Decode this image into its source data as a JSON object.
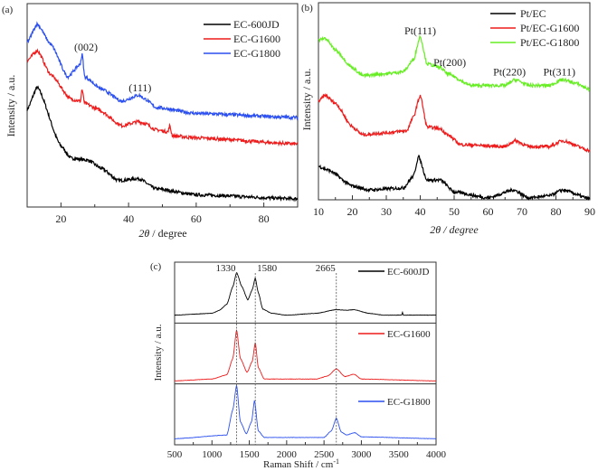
{
  "chart_data": [
    {
      "panel_label": "(a)",
      "type": "line",
      "xlabel_italic": "2θ",
      "xlabel_rest": " / degree",
      "ylabel": "Intensity / a.u.",
      "xlim": [
        10,
        90
      ],
      "ylim": [
        0,
        100
      ],
      "xticks": [
        20,
        40,
        60,
        80
      ],
      "grid": false,
      "legend": "top-right",
      "annotations": [
        {
          "text": "(002)",
          "x": 27.4,
          "y": 77
        },
        {
          "text": "(111)",
          "x": 43.4,
          "y": 57
        }
      ],
      "series": [
        {
          "name": "EC-600JD",
          "color": "#000000",
          "x": [
            10,
            13,
            20,
            23,
            28,
            32,
            37,
            43,
            48,
            60,
            90
          ],
          "y": [
            48,
            59,
            30,
            24,
            23,
            19,
            13,
            14,
            9,
            6,
            4
          ]
        },
        {
          "name": "EC-G1600",
          "color": "#ee1c1c",
          "x": [
            10,
            13,
            17,
            23,
            25.8,
            26.2,
            27,
            31,
            38,
            43,
            45,
            48,
            51.7,
            52.1,
            53,
            60,
            90
          ],
          "y": [
            72,
            77,
            65,
            53,
            52,
            58,
            51,
            48,
            40,
            42,
            41,
            38,
            37,
            40,
            35,
            34,
            31
          ]
        },
        {
          "name": "EC-G1800",
          "color": "#2b4ff0",
          "x": [
            10,
            13,
            17,
            22,
            25.6,
            26.3,
            27,
            32,
            38,
            43,
            45,
            48,
            60,
            90
          ],
          "y": [
            81,
            90,
            80,
            64,
            70,
            75,
            64,
            58,
            52,
            55,
            53,
            49,
            46,
            44
          ]
        }
      ]
    },
    {
      "panel_label": "(b)",
      "type": "line",
      "xlabel": "2θ / degree",
      "ylabel": "Intensity / a.u.",
      "xlim": [
        10,
        90
      ],
      "ylim": [
        0,
        100
      ],
      "xticks": [
        10,
        20,
        30,
        40,
        50,
        60,
        70,
        80,
        90
      ],
      "grid": false,
      "legend": "top-right",
      "annotations": [
        {
          "text": "Pt(111)",
          "x": 40,
          "y": 84
        },
        {
          "text": "Pt(200)",
          "x": 48.7,
          "y": 68
        },
        {
          "text": "Pt(220)",
          "x": 66.3,
          "y": 63
        },
        {
          "text": "Pt(311)",
          "x": 81,
          "y": 63
        }
      ],
      "series": [
        {
          "name": "Pt/EC",
          "color": "#000000",
          "x": [
            10,
            13,
            20,
            25,
            35,
            38,
            39.5,
            42,
            46,
            50,
            60,
            67.5,
            72,
            78,
            82,
            90
          ],
          "y": [
            17,
            15,
            7,
            5,
            6,
            12,
            22,
            10,
            10,
            4,
            1,
            5,
            1,
            2,
            5,
            0.5
          ]
        },
        {
          "name": "Pt/EC-G1600",
          "color": "#ee1c1c",
          "x": [
            10,
            12,
            15,
            20,
            23,
            30,
            36,
            38,
            40,
            42,
            46,
            48,
            52,
            65,
            68,
            72,
            78,
            82,
            90
          ],
          "y": [
            50,
            53,
            49,
            37,
            33,
            34,
            35,
            42,
            53,
            37,
            36,
            33,
            28,
            27,
            30,
            27,
            27,
            30,
            25
          ]
        },
        {
          "name": "Pt/EC-G1800",
          "color": "#66ee22",
          "x": [
            10,
            12,
            15,
            20,
            23,
            30,
            35,
            38,
            40,
            42,
            46,
            48,
            55,
            65,
            68,
            72,
            78,
            82,
            86,
            90
          ],
          "y": [
            81,
            82,
            76,
            67,
            63,
            64,
            65,
            71,
            83,
            69,
            67,
            64,
            58,
            58,
            61,
            58,
            58,
            61,
            59,
            56
          ]
        }
      ]
    },
    {
      "panel_label": "(c)",
      "type": "line",
      "xlabel": "Raman Shift / cm",
      "xlabel_sup": "-1",
      "ylabel": "Intensity / a.u.",
      "xlim": [
        500,
        4000
      ],
      "ylim": [
        0,
        100
      ],
      "xticks": [
        500,
        1000,
        1500,
        2000,
        2500,
        3000,
        3500,
        4000
      ],
      "grid": false,
      "stacked_subpanels": true,
      "reference_lines": [
        {
          "text": "1330",
          "x": 1330
        },
        {
          "text": "1580",
          "x": 1580
        },
        {
          "text": "2665",
          "x": 2665
        }
      ],
      "series": [
        {
          "name": "EC-600JD",
          "color": "#000000",
          "x": [
            500,
            1000,
            1100,
            1200,
            1280,
            1330,
            1400,
            1480,
            1540,
            1580,
            1620,
            1680,
            1800,
            2000,
            2400,
            2665,
            2800,
            2900,
            3100,
            3300,
            3540,
            3550,
            3560,
            4000
          ],
          "y": [
            13,
            16,
            21,
            31,
            60,
            83,
            60,
            38,
            55,
            74,
            50,
            23,
            16,
            13,
            16,
            22,
            21,
            22,
            16,
            13,
            13,
            18,
            13,
            13
          ]
        },
        {
          "name": "EC-G1600",
          "color": "#ee1c1c",
          "x": [
            500,
            1000,
            1200,
            1280,
            1330,
            1380,
            1470,
            1540,
            1580,
            1620,
            1700,
            2400,
            2550,
            2665,
            2780,
            2900,
            3000,
            4000
          ],
          "y": [
            5,
            8,
            15,
            42,
            89,
            42,
            19,
            37,
            68,
            27,
            8,
            8,
            13,
            25,
            12,
            16,
            8,
            5
          ]
        },
        {
          "name": "EC-G1800",
          "color": "#2b4ff0",
          "x": [
            500,
            1200,
            1280,
            1330,
            1380,
            1460,
            1530,
            1570,
            1620,
            1700,
            2500,
            2600,
            2665,
            2730,
            2800,
            2910,
            3000,
            4000
          ],
          "y": [
            10,
            16,
            58,
            98,
            38,
            18,
            38,
            73,
            23,
            12,
            12,
            23,
            44,
            21,
            16,
            20,
            13,
            10
          ]
        }
      ]
    }
  ]
}
